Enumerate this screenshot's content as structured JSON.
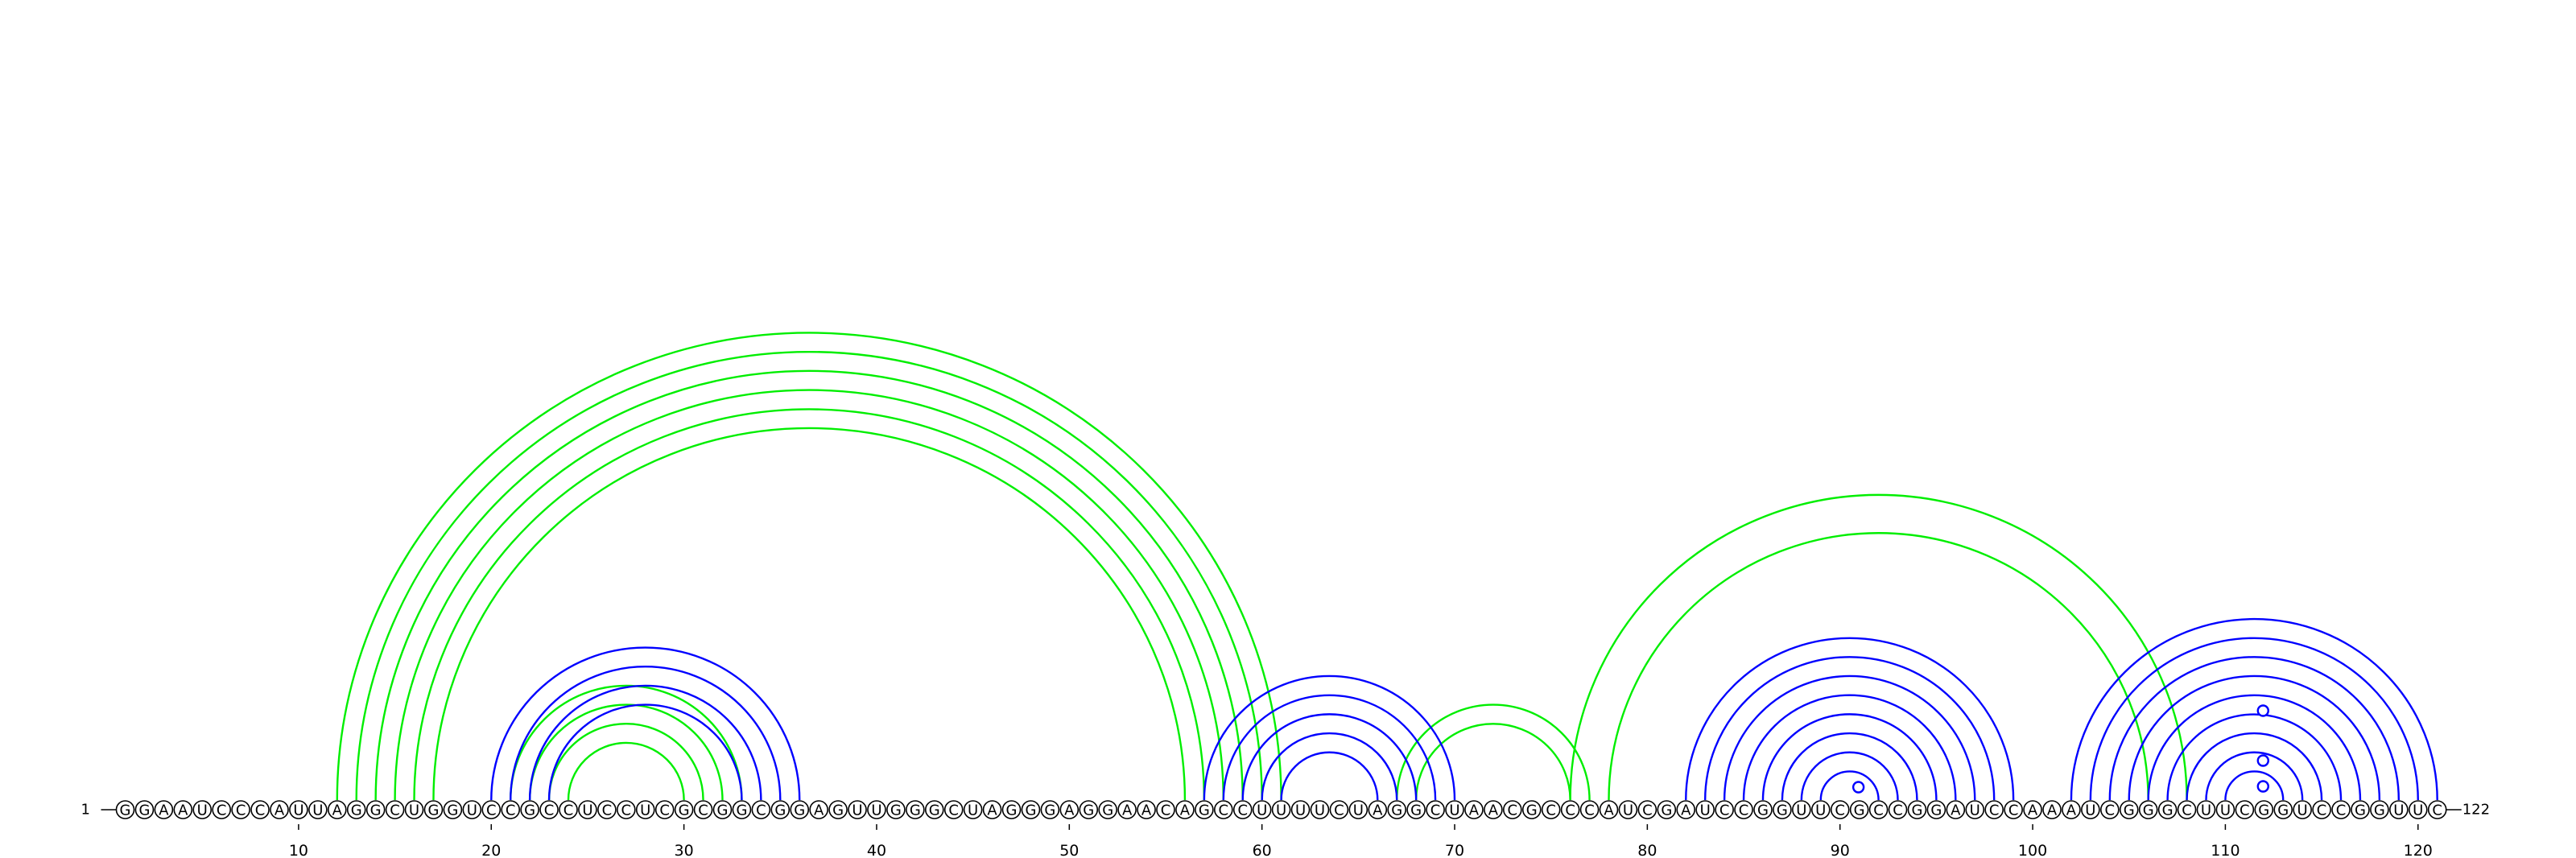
{
  "sequence": "GGAAUCCCAUUAGGCUGGUCCGCCUCCUCGCGGCGGAGUUGGGCUAGGGAGGAACAGCCUUUUCUAGGCUAACGCCCAUCGAUCCGGUUCGCCGGAUCCAAAUCGGGCUUCGGUCCGGUUC",
  "start_label": "1",
  "end_label": "122",
  "tick_labels": [
    "10",
    "20",
    "30",
    "40",
    "50",
    "60",
    "70",
    "80",
    "90",
    "100",
    "110",
    "120"
  ],
  "colors": {
    "blue": "#0000ff",
    "green": "#00ee00",
    "background": "#ffffff",
    "text": "#000000"
  },
  "chart_data": {
    "type": "arc-diagram",
    "length": 122,
    "x_ticks": [
      10,
      20,
      30,
      40,
      50,
      60,
      70,
      80,
      90,
      100,
      110,
      120
    ],
    "arcs_blue": [
      [
        20,
        36
      ],
      [
        21,
        35
      ],
      [
        22,
        34
      ],
      [
        23,
        33
      ],
      [
        57,
        70
      ],
      [
        58,
        69
      ],
      [
        59,
        68
      ],
      [
        60,
        67
      ],
      [
        61,
        66
      ],
      [
        82,
        99
      ],
      [
        83,
        98
      ],
      [
        84,
        97
      ],
      [
        85,
        96
      ],
      [
        86,
        95
      ],
      [
        87,
        94
      ],
      [
        88,
        93
      ],
      [
        89,
        92
      ],
      [
        102,
        121
      ],
      [
        103,
        120
      ],
      [
        104,
        119
      ],
      [
        105,
        118
      ],
      [
        106,
        117
      ],
      [
        107,
        116
      ],
      [
        108,
        115
      ],
      [
        109,
        114
      ],
      [
        110,
        113
      ]
    ],
    "arcs_green": [
      [
        12,
        61
      ],
      [
        13,
        60
      ],
      [
        14,
        59
      ],
      [
        15,
        58
      ],
      [
        16,
        57
      ],
      [
        17,
        56
      ],
      [
        21,
        33
      ],
      [
        22,
        32
      ],
      [
        23,
        31
      ],
      [
        24,
        30
      ],
      [
        67,
        77
      ],
      [
        68,
        76
      ],
      [
        76,
        108
      ],
      [
        78,
        106
      ]
    ],
    "markers_blue": [
      91,
      112,
      112,
      112
    ]
  }
}
